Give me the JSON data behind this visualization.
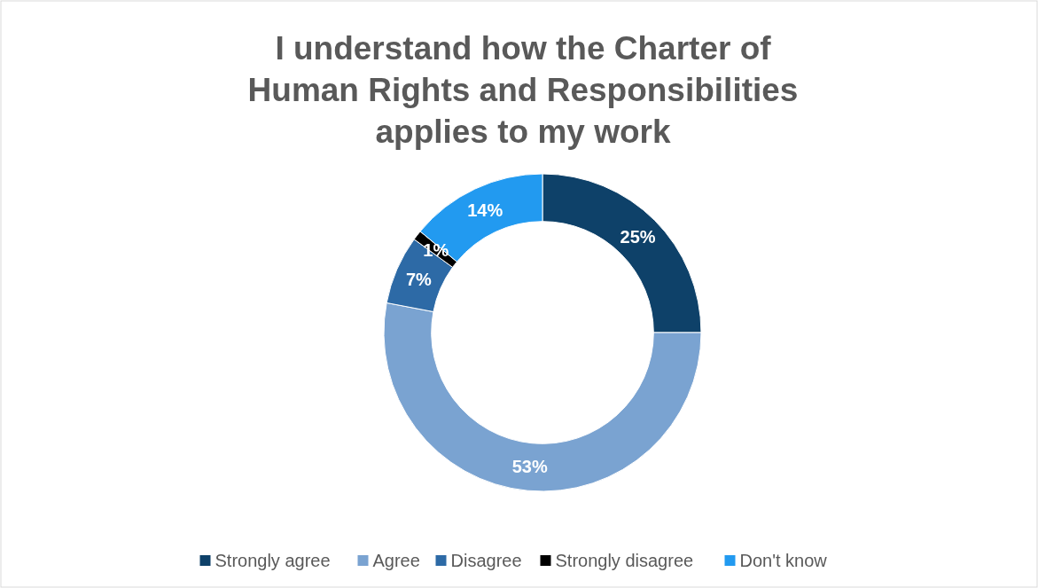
{
  "chart_data": {
    "type": "donut",
    "title": "I understand how the Charter of Human Rights and Responsibilities applies to my work",
    "categories": [
      "Strongly agree",
      "Agree",
      "Disagree",
      "Strongly disagree",
      "Don't know"
    ],
    "values": [
      25,
      53,
      7,
      1,
      14
    ],
    "colors": [
      "#0e4169",
      "#7aa3d1",
      "#2d6aa6",
      "#000000",
      "#229af0"
    ],
    "value_labels": [
      "25%",
      "53%",
      "7%",
      "1%",
      "14%"
    ],
    "legend": "bottom"
  }
}
